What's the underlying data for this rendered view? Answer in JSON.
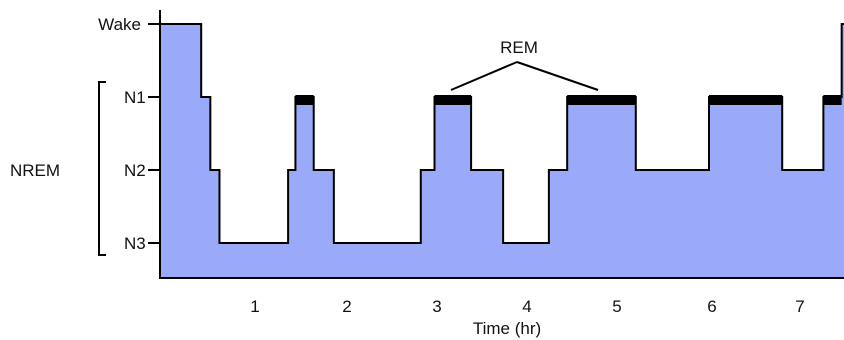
{
  "chart_data": {
    "type": "area",
    "title": "",
    "xlabel": "Time (hr)",
    "ylabel": "",
    "x_ticks": [
      1,
      2,
      3,
      4,
      5,
      6,
      7
    ],
    "y_levels": [
      "Wake",
      "N1",
      "N2",
      "N3"
    ],
    "group_label": "NREM",
    "group_covers": [
      "N1",
      "N2",
      "N3"
    ],
    "annotation": "REM",
    "fill_color": "#9aaaf8",
    "rem_color": "#000000",
    "hypnogram": [
      {
        "t": 0.0,
        "stage": "Wake"
      },
      {
        "t": 0.45,
        "stage": "N1"
      },
      {
        "t": 0.55,
        "stage": "N2"
      },
      {
        "t": 0.65,
        "stage": "N3"
      },
      {
        "t": 1.4,
        "stage": "N2"
      },
      {
        "t": 1.48,
        "stage": "N1",
        "rem": true
      },
      {
        "t": 1.68,
        "stage": "N2"
      },
      {
        "t": 1.9,
        "stage": "N3"
      },
      {
        "t": 2.85,
        "stage": "N2"
      },
      {
        "t": 3.0,
        "stage": "N1",
        "rem": true
      },
      {
        "t": 3.4,
        "stage": "N2"
      },
      {
        "t": 3.75,
        "stage": "N3"
      },
      {
        "t": 4.25,
        "stage": "N2"
      },
      {
        "t": 4.45,
        "stage": "N1",
        "rem": true
      },
      {
        "t": 5.2,
        "stage": "N2"
      },
      {
        "t": 6.0,
        "stage": "N1",
        "rem": true
      },
      {
        "t": 6.8,
        "stage": "N2"
      },
      {
        "t": 7.25,
        "stage": "N1",
        "rem": true
      },
      {
        "t": 7.45,
        "stage": "Wake"
      }
    ],
    "x_end": 7.56
  }
}
